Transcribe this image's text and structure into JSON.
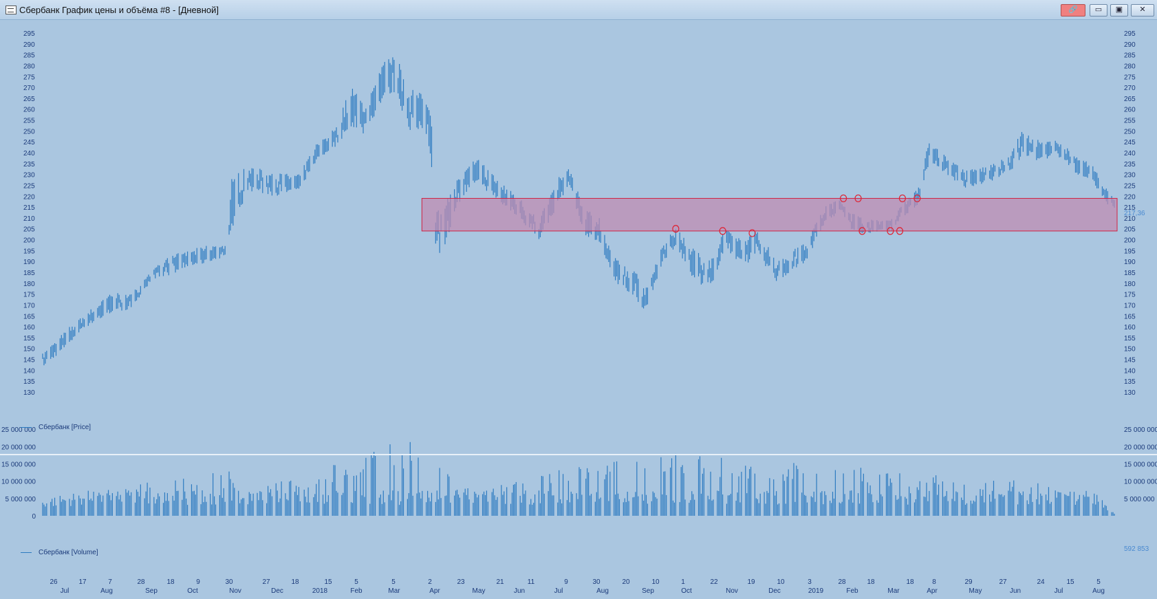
{
  "window": {
    "title": "Сбербанк График цены и объёма #8 - [Дневной]",
    "buttons": {
      "link": "🔗",
      "minimize": "▭",
      "maximize": "▣",
      "close": "✕"
    }
  },
  "colors": {
    "background": "#aac6e0",
    "bars": "#2c7ac0",
    "axis_text": "#1b3a7a",
    "zone_fill": "#c08ab0",
    "zone_stroke": "#d02040",
    "marker": "#e02030"
  },
  "price_panel": {
    "legend": "Сбербанк [Price]",
    "last_value": "217,36",
    "y_ticks": [
      "295",
      "290",
      "285",
      "280",
      "275",
      "270",
      "265",
      "260",
      "255",
      "250",
      "245",
      "240",
      "235",
      "230",
      "225",
      "220",
      "215",
      "210",
      "205",
      "200",
      "195",
      "190",
      "185",
      "180",
      "175",
      "170",
      "165",
      "160",
      "155",
      "150",
      "145",
      "140",
      "135",
      "130"
    ]
  },
  "volume_panel": {
    "legend": "Сбербанк [Volume]",
    "last_value": "592 853",
    "y_ticks_left": [
      "25 000 000",
      "20 000 000",
      "15 000 000",
      "10 000 000",
      "5 000 000",
      "0"
    ],
    "y_ticks_right": [
      "25 000 000",
      "20 000 000",
      "15 000 000",
      "10 000 000",
      "5 000 000"
    ]
  },
  "x_axis": {
    "days": [
      "26",
      "17",
      "7",
      "28",
      "18",
      "9",
      "30",
      "27",
      "18",
      "15",
      "5",
      "5",
      "2",
      "23",
      "21",
      "11",
      "9",
      "30",
      "20",
      "10",
      "1",
      "22",
      "19",
      "10",
      "3",
      "28",
      "18",
      "18",
      "8",
      "29",
      "27",
      "24",
      "15",
      "5"
    ],
    "months": [
      "Jul",
      "Aug",
      "Sep",
      "Oct",
      "Nov",
      "Dec",
      "2018",
      "Feb",
      "Mar",
      "Apr",
      "May",
      "Jun",
      "Jul",
      "Aug",
      "Sep",
      "Oct",
      "Nov",
      "Dec",
      "2019",
      "Feb",
      "Mar",
      "Apr",
      "May",
      "Jun",
      "Jul",
      "Aug"
    ]
  },
  "chart_data": [
    {
      "type": "bar",
      "title": "",
      "series": [
        {
          "name": "Сбербанк [Price]"
        }
      ],
      "ylim": [
        130,
        295
      ],
      "period": "Дневной",
      "anchors": [
        {
          "date": "2017-06-20",
          "low": 141,
          "high": 148
        },
        {
          "date": "2017-07-10",
          "low": 152,
          "high": 160
        },
        {
          "date": "2017-07-20",
          "low": 159,
          "high": 165
        },
        {
          "date": "2017-08-10",
          "low": 166,
          "high": 176
        },
        {
          "date": "2017-08-25",
          "low": 168,
          "high": 175
        },
        {
          "date": "2017-09-05",
          "low": 178,
          "high": 183
        },
        {
          "date": "2017-09-20",
          "low": 183,
          "high": 192
        },
        {
          "date": "2017-10-05",
          "low": 187,
          "high": 195
        },
        {
          "date": "2017-10-25",
          "low": 190,
          "high": 198
        },
        {
          "date": "2017-11-05",
          "low": 193,
          "high": 198
        },
        {
          "date": "2017-11-08",
          "low": 205,
          "high": 229
        },
        {
          "date": "2017-11-20",
          "low": 222,
          "high": 234
        },
        {
          "date": "2017-12-10",
          "low": 220,
          "high": 231
        },
        {
          "date": "2017-12-28",
          "low": 222,
          "high": 230
        },
        {
          "date": "2018-01-10",
          "low": 236,
          "high": 244
        },
        {
          "date": "2018-01-25",
          "low": 243,
          "high": 252
        },
        {
          "date": "2018-02-05",
          "low": 252,
          "high": 272
        },
        {
          "date": "2018-02-15",
          "low": 248,
          "high": 262
        },
        {
          "date": "2018-03-01",
          "low": 265,
          "high": 282
        },
        {
          "date": "2018-03-10",
          "low": 268,
          "high": 285
        },
        {
          "date": "2018-03-20",
          "low": 250,
          "high": 272
        },
        {
          "date": "2018-04-02",
          "low": 248,
          "high": 265
        },
        {
          "date": "2018-04-06",
          "low": 232,
          "high": 262
        },
        {
          "date": "2018-04-09",
          "low": 197,
          "high": 222
        },
        {
          "date": "2018-04-13",
          "low": 192,
          "high": 214
        },
        {
          "date": "2018-04-25",
          "low": 215,
          "high": 228
        },
        {
          "date": "2018-05-10",
          "low": 227,
          "high": 238
        },
        {
          "date": "2018-05-25",
          "low": 217,
          "high": 228
        },
        {
          "date": "2018-06-10",
          "low": 210,
          "high": 220
        },
        {
          "date": "2018-06-25",
          "low": 199,
          "high": 210
        },
        {
          "date": "2018-07-10",
          "low": 217,
          "high": 229
        },
        {
          "date": "2018-07-18",
          "low": 225,
          "high": 233
        },
        {
          "date": "2018-07-28",
          "low": 203,
          "high": 215
        },
        {
          "date": "2018-08-10",
          "low": 196,
          "high": 210
        },
        {
          "date": "2018-08-20",
          "low": 180,
          "high": 192
        },
        {
          "date": "2018-09-05",
          "low": 173,
          "high": 186
        },
        {
          "date": "2018-09-12",
          "low": 167,
          "high": 177
        },
        {
          "date": "2018-09-25",
          "low": 188,
          "high": 197
        },
        {
          "date": "2018-10-05",
          "low": 197,
          "high": 206
        },
        {
          "date": "2018-10-20",
          "low": 180,
          "high": 195
        },
        {
          "date": "2018-11-02",
          "low": 178,
          "high": 192
        },
        {
          "date": "2018-11-10",
          "low": 195,
          "high": 205
        },
        {
          "date": "2018-11-25",
          "low": 188,
          "high": 200
        },
        {
          "date": "2018-12-05",
          "low": 193,
          "high": 205
        },
        {
          "date": "2018-12-20",
          "low": 180,
          "high": 190
        },
        {
          "date": "2019-01-10",
          "low": 190,
          "high": 200
        },
        {
          "date": "2019-01-25",
          "low": 208,
          "high": 216
        },
        {
          "date": "2019-02-05",
          "low": 212,
          "high": 219
        },
        {
          "date": "2019-02-15",
          "low": 203,
          "high": 212
        },
        {
          "date": "2019-03-01",
          "low": 203,
          "high": 209
        },
        {
          "date": "2019-03-15",
          "low": 204,
          "high": 210
        },
        {
          "date": "2019-03-27",
          "low": 212,
          "high": 220
        },
        {
          "date": "2019-04-05",
          "low": 217,
          "high": 225
        },
        {
          "date": "2019-04-12",
          "low": 236,
          "high": 247
        },
        {
          "date": "2019-04-25",
          "low": 230,
          "high": 238
        },
        {
          "date": "2019-05-10",
          "low": 223,
          "high": 232
        },
        {
          "date": "2019-05-25",
          "low": 226,
          "high": 234
        },
        {
          "date": "2019-06-10",
          "low": 230,
          "high": 238
        },
        {
          "date": "2019-06-20",
          "low": 238,
          "high": 250
        },
        {
          "date": "2019-07-05",
          "low": 236,
          "high": 245
        },
        {
          "date": "2019-07-20",
          "low": 238,
          "high": 246
        },
        {
          "date": "2019-07-30",
          "low": 230,
          "high": 238
        },
        {
          "date": "2019-08-10",
          "low": 228,
          "high": 236
        },
        {
          "date": "2019-08-20",
          "low": 218,
          "high": 226
        },
        {
          "date": "2019-08-28",
          "low": 213,
          "high": 219
        }
      ],
      "zone": {
        "from": 204,
        "to": 219,
        "start_date": "2018-04-09",
        "end_date": "2019-08-28"
      },
      "touch_points": [
        {
          "date": "2018-10-05",
          "price": 205
        },
        {
          "date": "2018-11-09",
          "price": 204
        },
        {
          "date": "2018-12-01",
          "price": 203
        },
        {
          "date": "2019-02-07",
          "price": 219
        },
        {
          "date": "2019-02-18",
          "price": 219
        },
        {
          "date": "2019-02-21",
          "price": 204
        },
        {
          "date": "2019-03-14",
          "price": 204
        },
        {
          "date": "2019-03-21",
          "price": 204
        },
        {
          "date": "2019-03-23",
          "price": 219
        },
        {
          "date": "2019-04-03",
          "price": 219
        }
      ]
    },
    {
      "type": "bar",
      "title": "",
      "series": [
        {
          "name": "Сбербанк [Volume]"
        }
      ],
      "ylim": [
        0,
        27000000
      ],
      "anchors": [
        {
          "date": "2017-06-20",
          "value": 5000000
        },
        {
          "date": "2017-11-08",
          "value": 13500000
        },
        {
          "date": "2017-11-15",
          "value": 6000000
        },
        {
          "date": "2018-04-06",
          "value": 25000000
        },
        {
          "date": "2018-04-12",
          "value": 19000000
        },
        {
          "date": "2018-04-25",
          "value": 8000000
        },
        {
          "date": "2018-08-10",
          "value": 15500000
        },
        {
          "date": "2018-09-12",
          "value": 19000000
        },
        {
          "date": "2019-02-18",
          "value": 15000000
        },
        {
          "date": "2019-04-05",
          "value": 12000000
        },
        {
          "date": "2019-08-10",
          "value": 9000000
        },
        {
          "date": "2019-08-28",
          "value": 592853
        }
      ]
    }
  ]
}
